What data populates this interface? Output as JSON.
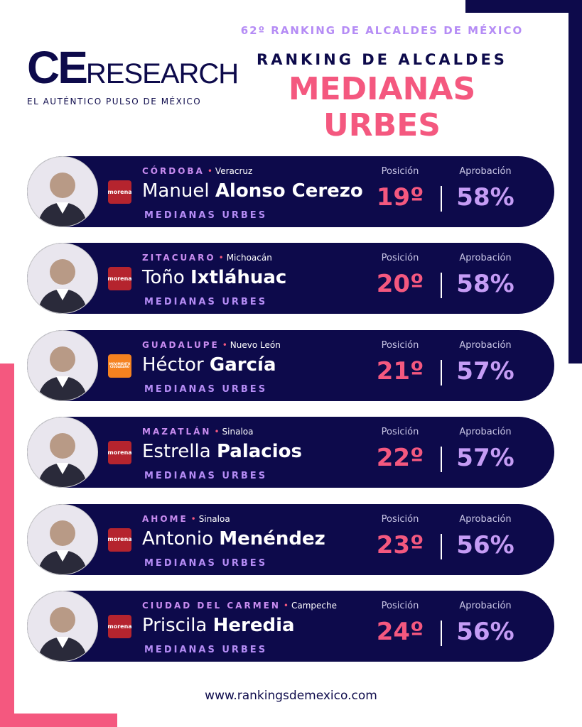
{
  "header": {
    "edition": "62º RANKING DE ALCALDES DE MÉXICO",
    "kicker": "RANKING DE ALCALDES",
    "title": "MEDIANAS URBES",
    "brand": {
      "ce": "CE",
      "research": "RESEARCH",
      "tagline": "EL AUTÉNTICO PULSO DE MÉXICO"
    }
  },
  "labels": {
    "position": "Posición",
    "approval": "Aprobación"
  },
  "rows": [
    {
      "city": "CÓRDOBA",
      "state": "Veracruz",
      "first_name": "Manuel",
      "last_name": "Alonso Cerezo",
      "category": "MEDIANAS URBES",
      "party": "morena",
      "position": "19º",
      "approval": "58%"
    },
    {
      "city": "ZITACUARO",
      "state": "Michoacán",
      "first_name": "Toño",
      "last_name": "Ixtláhuac",
      "category": "MEDIANAS URBES",
      "party": "morena",
      "position": "20º",
      "approval": "58%"
    },
    {
      "city": "GUADALUPE",
      "state": "Nuevo León",
      "first_name": "Héctor",
      "last_name": "García",
      "category": "MEDIANAS URBES",
      "party": "MOVIMIENTO CIUDADANO",
      "position": "21º",
      "approval": "57%"
    },
    {
      "city": "MAZATLÁN",
      "state": "Sinaloa",
      "first_name": "Estrella",
      "last_name": "Palacios",
      "category": "MEDIANAS URBES",
      "party": "morena",
      "position": "22º",
      "approval": "57%"
    },
    {
      "city": "AHOME",
      "state": "Sinaloa",
      "first_name": "Antonio",
      "last_name": "Menéndez",
      "category": "MEDIANAS URBES",
      "party": "morena",
      "position": "23º",
      "approval": "56%"
    },
    {
      "city": "CIUDAD DEL CARMEN",
      "state": "Campeche",
      "first_name": "Priscila",
      "last_name": "Heredia",
      "category": "MEDIANAS URBES",
      "party": "morena",
      "position": "24º",
      "approval": "56%"
    }
  ],
  "footer": {
    "url": "www.rankingsdemexico.com"
  }
}
